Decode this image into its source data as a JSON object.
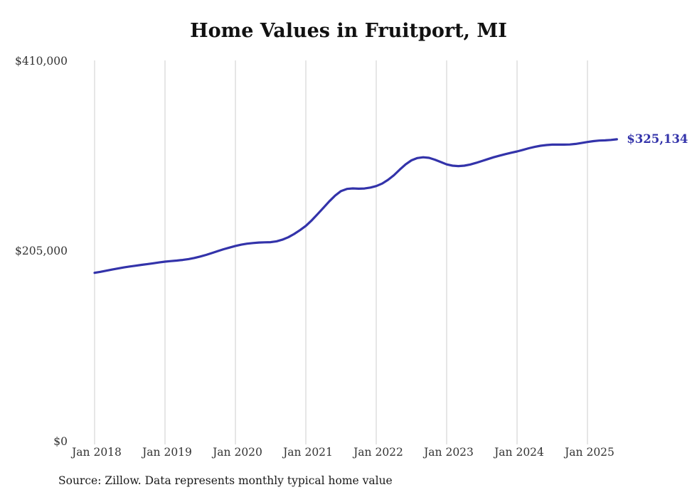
{
  "chart_data": {
    "type": "line",
    "title": "Home Values in Fruitport, MI",
    "series_name": "Monthly typical home value",
    "frequency": "monthly",
    "start": "Jan 2018",
    "end": "Jun 2025",
    "ylim": [
      0,
      410000
    ],
    "grid": "vertical-year-lines",
    "legend": "none",
    "y_tick_labels": [
      "$0",
      "$205,000",
      "$410,000"
    ],
    "x_tick_labels": [
      "Jan 2018",
      "Jan 2019",
      "Jan 2020",
      "Jan 2021",
      "Jan 2022",
      "Jan 2023",
      "Jan 2024",
      "Jan 2025"
    ],
    "end_label": "$325,134",
    "last_value": 325134,
    "values": [
      181500,
      182600,
      183800,
      185000,
      186200,
      187300,
      188300,
      189200,
      190100,
      190900,
      191800,
      192700,
      193500,
      194100,
      194700,
      195400,
      196300,
      197500,
      199000,
      200800,
      202800,
      204900,
      206900,
      208700,
      210400,
      211800,
      212900,
      213600,
      214100,
      214300,
      214500,
      215400,
      217200,
      219800,
      223300,
      227400,
      232000,
      238000,
      244600,
      251500,
      258400,
      264700,
      269500,
      271800,
      272300,
      272000,
      272200,
      273200,
      274800,
      277500,
      281500,
      286500,
      292500,
      298200,
      302500,
      305000,
      305800,
      305200,
      303200,
      300700,
      298200,
      296800,
      296300,
      296800,
      298000,
      299800,
      301800,
      303800,
      305800,
      307600,
      309200,
      310700,
      312100,
      313800,
      315500,
      317000,
      318200,
      319000,
      319400,
      319500,
      319400,
      319600,
      320200,
      321200,
      322300,
      323200,
      323800,
      324000,
      324500,
      325134
    ],
    "colors": {
      "line": "#3333aa",
      "end_label": "#3333aa",
      "grid": "#cccccc",
      "axis_text": "#333333"
    }
  },
  "footer": {
    "source": "Source: Zillow. Data represents monthly typical home value"
  }
}
